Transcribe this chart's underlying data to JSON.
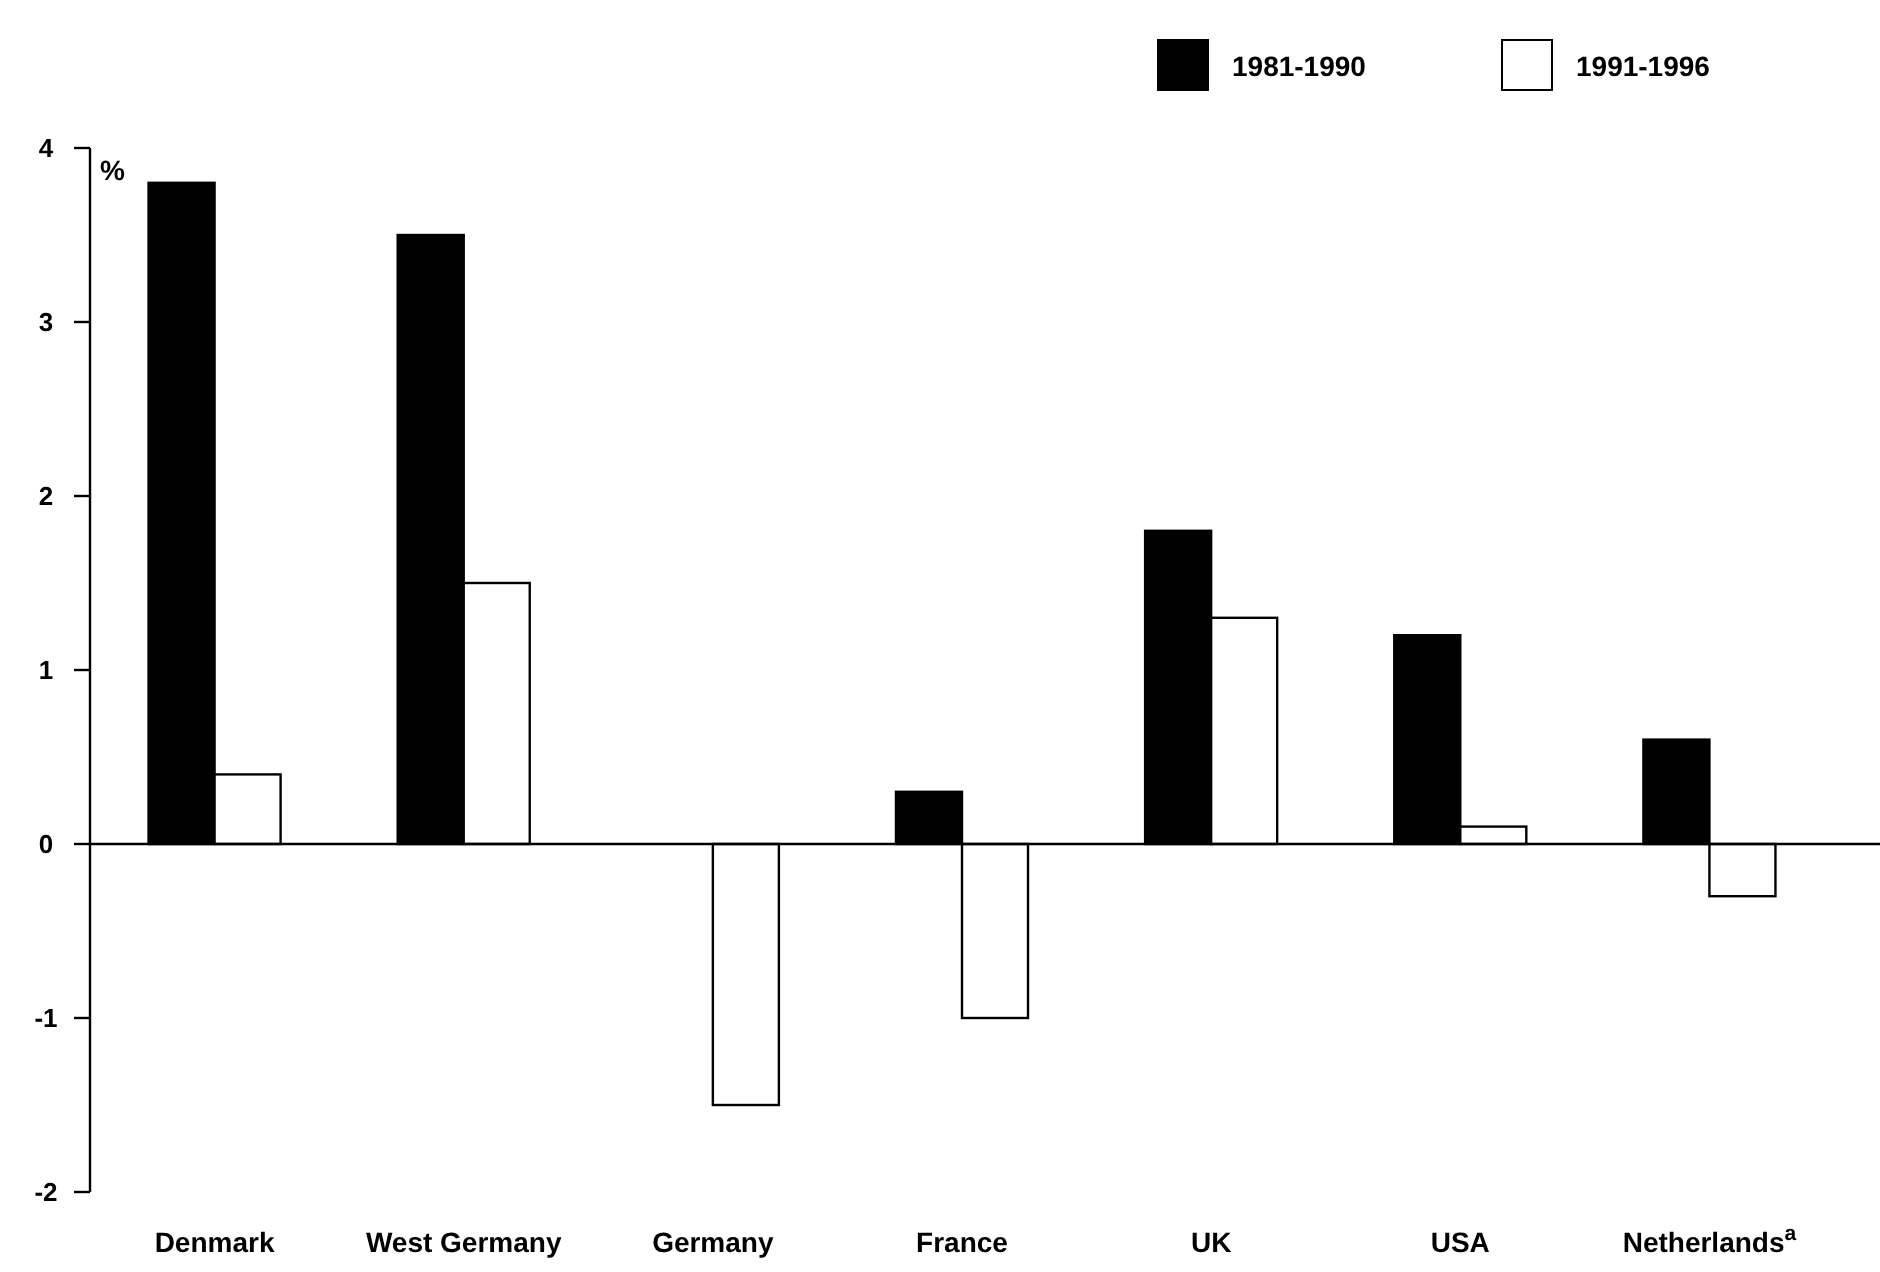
{
  "chart_data": {
    "type": "bar",
    "ylabel": "%",
    "categories": [
      "Denmark",
      "West Germany",
      "Germany",
      "France",
      "UK",
      "USA",
      "Netherlands$^{a}$"
    ],
    "series": [
      {
        "name": "1981-1990",
        "color": "#000000",
        "values": [
          3.8,
          3.5,
          null,
          0.3,
          1.8,
          1.2,
          0.6
        ]
      },
      {
        "name": "1991-1996",
        "color": "#ffffff",
        "values": [
          0.4,
          1.5,
          -1.5,
          -1.0,
          1.3,
          0.1,
          -0.3
        ]
      }
    ],
    "ylim": [
      -2,
      4
    ],
    "yticks": [
      -2,
      -1,
      0,
      1,
      2,
      3,
      4
    ],
    "legend": "top right"
  }
}
